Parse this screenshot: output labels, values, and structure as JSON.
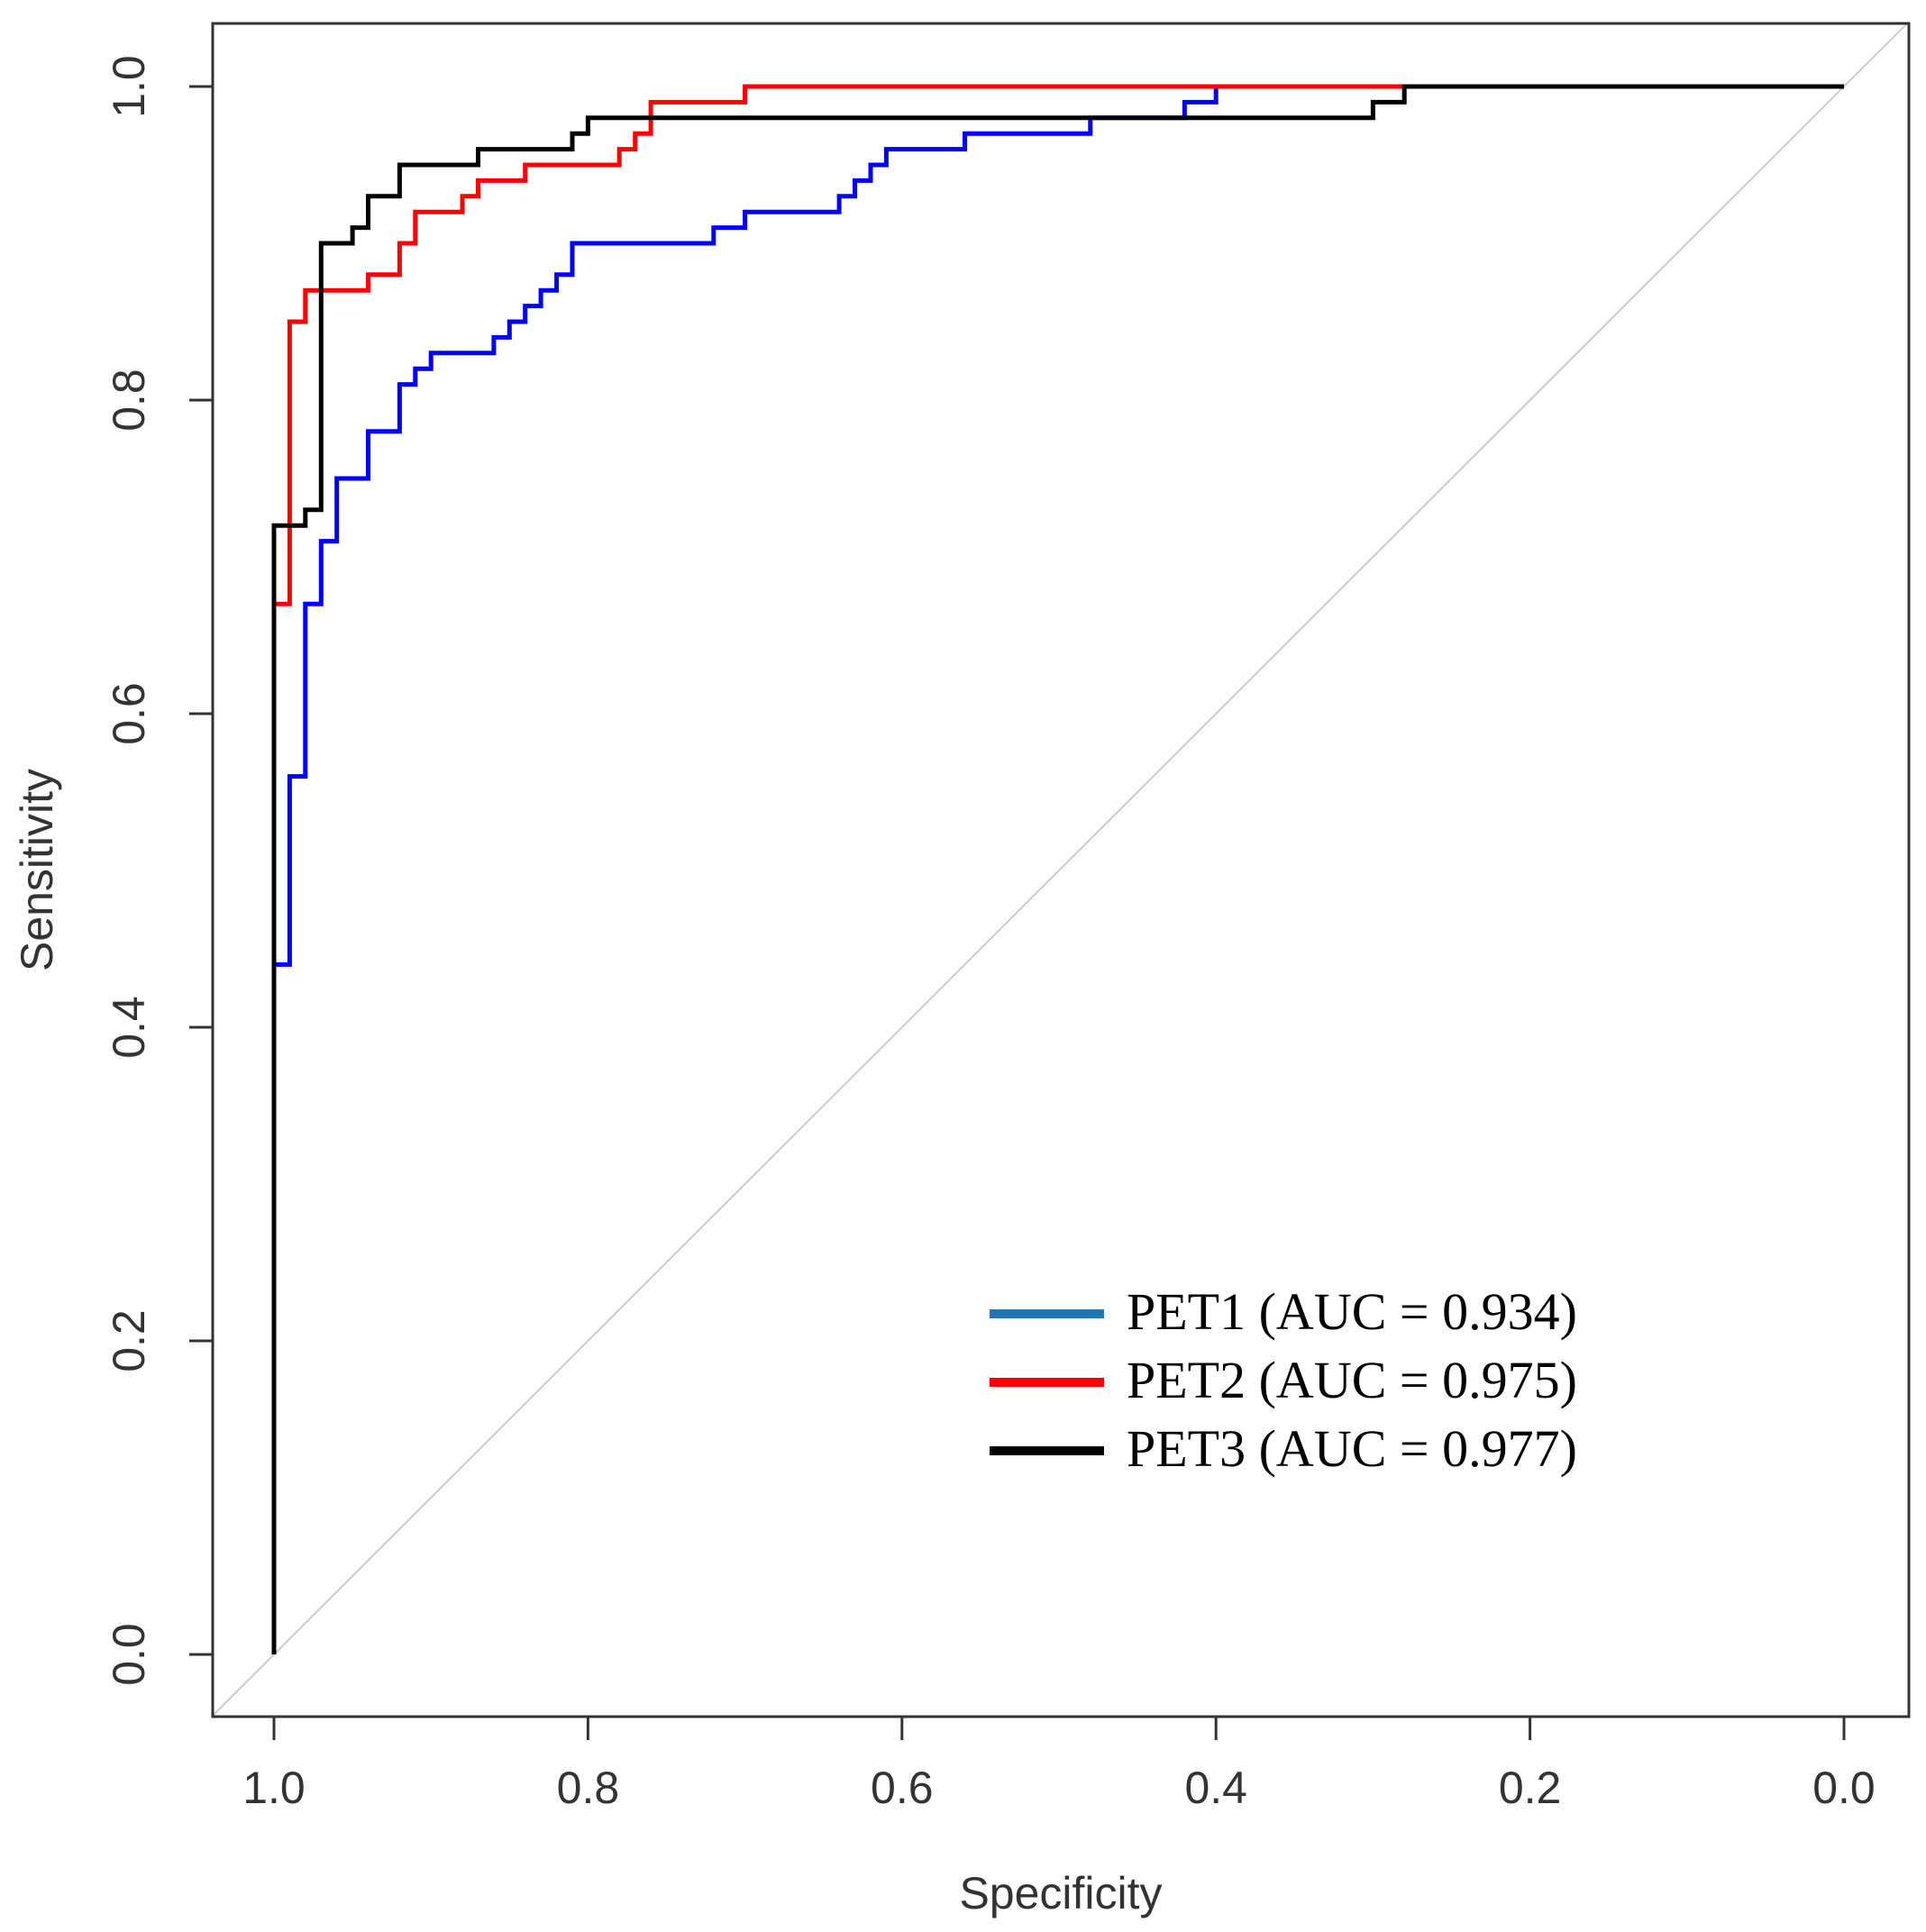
{
  "chart_data": {
    "type": "line",
    "xlabel": "Specificity",
    "ylabel": "Sensitivity",
    "xlim": [
      1.0,
      0.0
    ],
    "ylim": [
      0.0,
      1.0
    ],
    "x_reversed": true,
    "x_ticks": [
      "1.0",
      "0.8",
      "0.6",
      "0.4",
      "0.2",
      "0.0"
    ],
    "y_ticks": [
      "0.0",
      "0.2",
      "0.4",
      "0.6",
      "0.8",
      "1.0"
    ],
    "grid": false,
    "legend_position": "bottom-right",
    "diagonal_reference": true,
    "diagonal_color": "#cccccc",
    "series": [
      {
        "name": "PET1 (AUC = 0.934)",
        "color": "#0000ff",
        "legend_color": "#1f77b4",
        "x": [
          1.0,
          1.0,
          0.99,
          0.99,
          0.98,
          0.98,
          0.97,
          0.97,
          0.96,
          0.96,
          0.94,
          0.94,
          0.92,
          0.92,
          0.91,
          0.91,
          0.9,
          0.9,
          0.88,
          0.88,
          0.86,
          0.86,
          0.85,
          0.85,
          0.84,
          0.84,
          0.83,
          0.83,
          0.82,
          0.82,
          0.81,
          0.81,
          0.79,
          0.79,
          0.72,
          0.72,
          0.7,
          0.7,
          0.64,
          0.64,
          0.63,
          0.63,
          0.62,
          0.62,
          0.61,
          0.61,
          0.56,
          0.56,
          0.48,
          0.48,
          0.42,
          0.42,
          0.4,
          0.4,
          0.28,
          0.0
        ],
        "y": [
          0.0,
          0.44,
          0.44,
          0.56,
          0.56,
          0.67,
          0.67,
          0.71,
          0.71,
          0.75,
          0.75,
          0.78,
          0.78,
          0.81,
          0.81,
          0.82,
          0.82,
          0.83,
          0.83,
          0.83,
          0.83,
          0.84,
          0.84,
          0.85,
          0.85,
          0.86,
          0.86,
          0.87,
          0.87,
          0.88,
          0.88,
          0.9,
          0.9,
          0.9,
          0.9,
          0.91,
          0.91,
          0.92,
          0.92,
          0.93,
          0.93,
          0.94,
          0.94,
          0.95,
          0.95,
          0.96,
          0.96,
          0.97,
          0.97,
          0.98,
          0.98,
          0.99,
          0.99,
          1.0,
          1.0,
          1.0
        ]
      },
      {
        "name": "PET2 (AUC = 0.975)",
        "color": "#ff0000",
        "x": [
          1.0,
          1.0,
          0.99,
          0.99,
          0.98,
          0.98,
          0.94,
          0.94,
          0.92,
          0.92,
          0.91,
          0.91,
          0.88,
          0.88,
          0.87,
          0.87,
          0.84,
          0.84,
          0.82,
          0.82,
          0.78,
          0.78,
          0.77,
          0.77,
          0.76,
          0.76,
          0.7,
          0.7,
          0.28,
          0.0
        ],
        "y": [
          0.0,
          0.67,
          0.67,
          0.85,
          0.85,
          0.87,
          0.87,
          0.88,
          0.88,
          0.9,
          0.9,
          0.92,
          0.92,
          0.93,
          0.93,
          0.94,
          0.94,
          0.95,
          0.95,
          0.95,
          0.95,
          0.96,
          0.96,
          0.97,
          0.97,
          0.99,
          0.99,
          1.0,
          1.0,
          1.0
        ]
      },
      {
        "name": "PET3 (AUC = 0.977)",
        "color": "#000000",
        "x": [
          1.0,
          1.0,
          0.98,
          0.98,
          0.97,
          0.97,
          0.95,
          0.95,
          0.94,
          0.94,
          0.92,
          0.92,
          0.88,
          0.88,
          0.87,
          0.87,
          0.81,
          0.81,
          0.8,
          0.8,
          0.77,
          0.77,
          0.76,
          0.76,
          0.3,
          0.3,
          0.29,
          0.29,
          0.28,
          0.28,
          0.0
        ],
        "y": [
          0.0,
          0.72,
          0.72,
          0.73,
          0.73,
          0.9,
          0.9,
          0.91,
          0.91,
          0.93,
          0.93,
          0.95,
          0.95,
          0.95,
          0.95,
          0.96,
          0.96,
          0.97,
          0.97,
          0.98,
          0.98,
          0.98,
          0.98,
          0.98,
          0.98,
          0.99,
          0.99,
          0.99,
          0.99,
          1.0,
          1.0
        ]
      }
    ]
  }
}
